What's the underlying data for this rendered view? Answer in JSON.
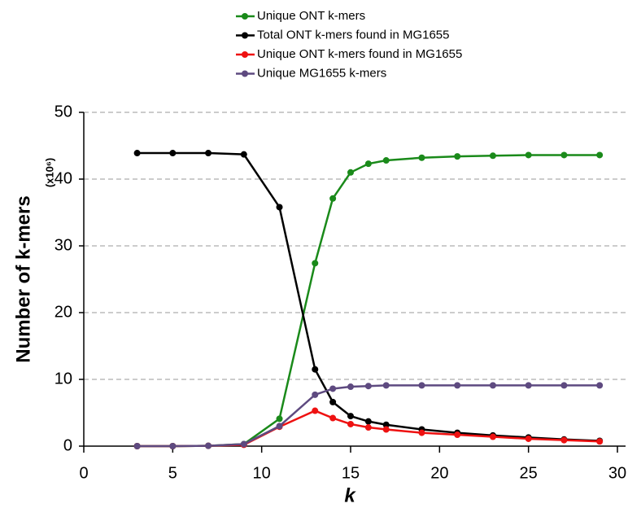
{
  "chart_data": {
    "type": "line",
    "y_label": "Number of k-mers",
    "y_unit": "(x10⁶)",
    "x_label": "k",
    "x": [
      3,
      5,
      7,
      9,
      11,
      13,
      14,
      15,
      16,
      17,
      19,
      21,
      23,
      25,
      27,
      29
    ],
    "series": [
      {
        "name": "Unique ONT k-mers",
        "color": "#1a8a1a",
        "values": [
          0,
          0,
          0.05,
          0.3,
          4.1,
          27.4,
          37.1,
          41.0,
          42.3,
          42.8,
          43.2,
          43.4,
          43.5,
          43.6,
          43.6,
          43.6
        ]
      },
      {
        "name": "Total ONT k-mers found in MG1655",
        "color": "#000000",
        "values": [
          43.9,
          43.9,
          43.9,
          43.7,
          35.8,
          11.5,
          6.6,
          4.5,
          3.7,
          3.2,
          2.5,
          2.0,
          1.6,
          1.3,
          1.0,
          0.8
        ]
      },
      {
        "name": "Unique ONT k-mers found in MG1655",
        "color": "#ee1111",
        "values": [
          0,
          0,
          0.05,
          0.2,
          2.9,
          5.3,
          4.2,
          3.3,
          2.8,
          2.5,
          2.0,
          1.7,
          1.4,
          1.1,
          0.9,
          0.7
        ]
      },
      {
        "name": "Unique MG1655 k-mers",
        "color": "#5e4a80",
        "values": [
          0,
          0,
          0.05,
          0.3,
          3.0,
          7.7,
          8.6,
          8.9,
          9.0,
          9.1,
          9.1,
          9.1,
          9.1,
          9.1,
          9.1,
          9.1
        ]
      }
    ],
    "xlim": [
      0,
      30
    ],
    "ylim": [
      0,
      50
    ],
    "xticks": [
      0,
      5,
      10,
      15,
      20,
      25,
      30
    ],
    "yticks": [
      0,
      10,
      20,
      30,
      40,
      50
    ],
    "grid": true
  }
}
